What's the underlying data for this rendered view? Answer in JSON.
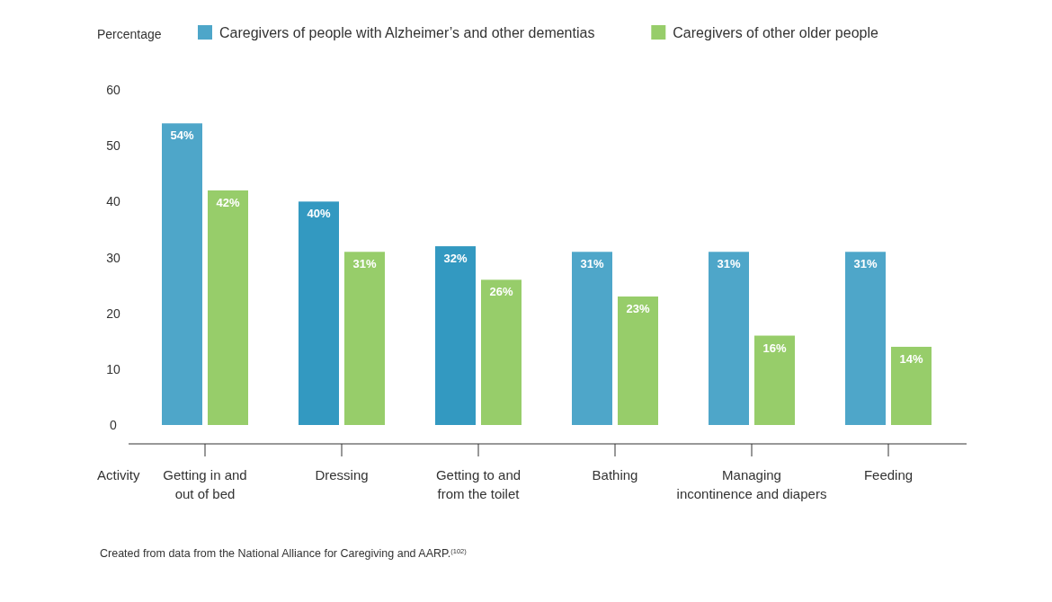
{
  "chart_data": {
    "type": "bar",
    "ylabel": "Percentage",
    "xlabel": "Activity",
    "categories": [
      "Getting in and out of bed",
      "Dressing",
      "Getting to and from the toilet",
      "Bathing",
      "Managing incontinence and diapers",
      "Feeding"
    ],
    "series": [
      {
        "name": "Caregivers of people with Alzheimer’s and other dementias",
        "color": "#4ea6c9",
        "colors": [
          "#4ea6c9",
          "#3399c1",
          "#3399c1",
          "#4ea6c9",
          "#4ea6c9",
          "#4ea6c9"
        ],
        "values": [
          54,
          40,
          32,
          31,
          31,
          31
        ]
      },
      {
        "name": "Caregivers of other older people",
        "color": "#97cd6a",
        "values": [
          42,
          31,
          26,
          23,
          16,
          14
        ]
      }
    ],
    "value_labels": [
      [
        "54%",
        "40%",
        "32%",
        "31%",
        "31%",
        "31%"
      ],
      [
        "42%",
        "31%",
        "26%",
        "23%",
        "16%",
        "14%"
      ]
    ],
    "ylim": [
      0,
      60
    ],
    "yticks": [
      0,
      10,
      20,
      30,
      40,
      50,
      60
    ],
    "grid": false,
    "legend": "top",
    "annotations": [
      "Created from data from the National Alliance for Caregiving and AARP.$^{(102)}$"
    ]
  }
}
